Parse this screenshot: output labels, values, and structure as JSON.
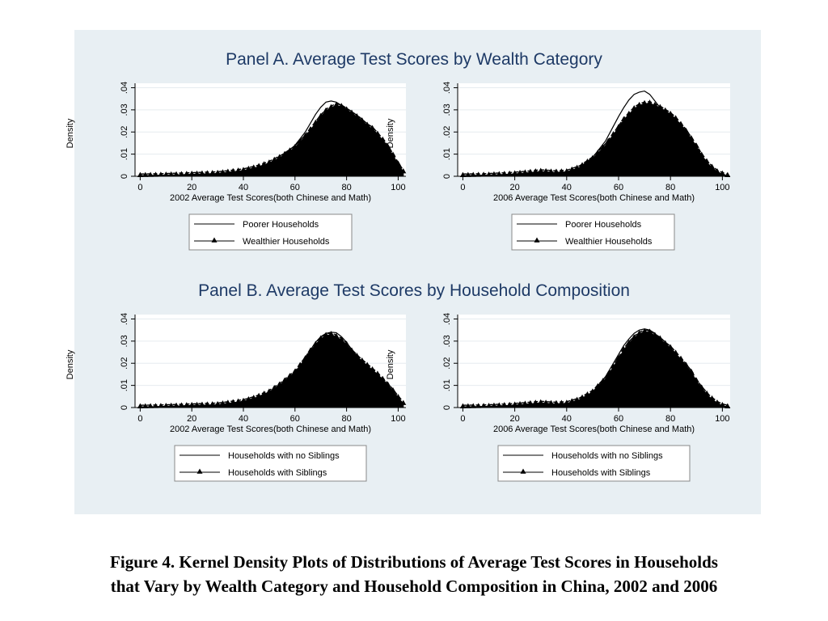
{
  "figure": {
    "caption_line1": "Figure 4. Kernel Density Plots of Distributions of Average Test Scores in Households",
    "caption_line2": "that Vary by Wealth Category and Household Composition in China, 2002 and 2006"
  },
  "colors": {
    "panel_bg": "#e8eff3",
    "plot_bg": "#ffffff",
    "title": "#1e3a66",
    "fill": "#000000"
  },
  "chart_data": [
    {
      "type": "area",
      "panel": "A",
      "panel_title": "Panel A. Average Test Scores by Wealth Category",
      "xlabel": "2002 Average Test Scores(both Chinese and Math)",
      "ylabel": "Density",
      "xlim": [
        -2,
        103
      ],
      "ylim": [
        0,
        0.042
      ],
      "xticks": [
        "0",
        "20",
        "40",
        "60",
        "80",
        "100"
      ],
      "yticks": [
        "0",
        ".01",
        ".02",
        ".03",
        ".04"
      ],
      "grid": true,
      "legend_position": "bottom",
      "series": [
        {
          "name": "Poorer Households",
          "style": "line",
          "x": [
            0,
            10,
            20,
            30,
            40,
            45,
            50,
            55,
            60,
            62,
            64,
            66,
            68,
            70,
            72,
            74,
            76,
            78,
            80,
            82,
            85,
            88,
            90,
            92,
            95,
            98,
            100,
            102
          ],
          "y": [
            0.0003,
            0.0005,
            0.0008,
            0.0012,
            0.0025,
            0.0038,
            0.0055,
            0.009,
            0.014,
            0.017,
            0.02,
            0.024,
            0.028,
            0.0312,
            0.0335,
            0.034,
            0.0335,
            0.032,
            0.03,
            0.0285,
            0.026,
            0.023,
            0.021,
            0.018,
            0.014,
            0.008,
            0.004,
            0.0015
          ]
        },
        {
          "name": "Wealthier Households",
          "style": "area-triangles",
          "x": [
            0,
            10,
            20,
            30,
            40,
            45,
            50,
            55,
            60,
            62,
            64,
            66,
            68,
            70,
            72,
            74,
            76,
            78,
            80,
            82,
            85,
            88,
            90,
            92,
            95,
            98,
            100,
            102
          ],
          "y": [
            0.0003,
            0.0005,
            0.0009,
            0.0013,
            0.0026,
            0.004,
            0.006,
            0.009,
            0.013,
            0.0155,
            0.018,
            0.021,
            0.024,
            0.027,
            0.0295,
            0.031,
            0.032,
            0.0315,
            0.03,
            0.0285,
            0.026,
            0.023,
            0.0215,
            0.019,
            0.015,
            0.0095,
            0.0055,
            0.002
          ]
        }
      ]
    },
    {
      "type": "area",
      "panel": "A",
      "xlabel": "2006 Average Test Scores(both Chinese and Math)",
      "ylabel": "Density",
      "xlim": [
        -2,
        103
      ],
      "ylim": [
        0,
        0.042
      ],
      "xticks": [
        "0",
        "20",
        "40",
        "60",
        "80",
        "100"
      ],
      "yticks": [
        "0",
        ".01",
        ".02",
        ".03",
        ".04"
      ],
      "grid": true,
      "legend_position": "bottom",
      "series": [
        {
          "name": "Poorer Households",
          "style": "line",
          "x": [
            0,
            10,
            20,
            25,
            30,
            35,
            40,
            45,
            50,
            55,
            60,
            62,
            64,
            66,
            68,
            70,
            72,
            74,
            76,
            78,
            80,
            82,
            85,
            88,
            90,
            92,
            95,
            98,
            100,
            102
          ],
          "y": [
            0.0003,
            0.0005,
            0.0009,
            0.0013,
            0.0016,
            0.0013,
            0.0018,
            0.004,
            0.0085,
            0.016,
            0.027,
            0.031,
            0.0345,
            0.037,
            0.038,
            0.0385,
            0.037,
            0.034,
            0.031,
            0.029,
            0.027,
            0.025,
            0.021,
            0.016,
            0.0125,
            0.009,
            0.0045,
            0.0018,
            0.0008,
            0.0003
          ]
        },
        {
          "name": "Wealthier Households",
          "style": "area-triangles",
          "x": [
            0,
            10,
            20,
            25,
            30,
            35,
            40,
            45,
            50,
            55,
            60,
            62,
            64,
            66,
            68,
            70,
            72,
            74,
            76,
            78,
            80,
            82,
            85,
            88,
            90,
            92,
            95,
            98,
            100,
            102
          ],
          "y": [
            0.0003,
            0.0005,
            0.0011,
            0.0016,
            0.0022,
            0.0018,
            0.002,
            0.004,
            0.008,
            0.014,
            0.022,
            0.0255,
            0.028,
            0.0305,
            0.032,
            0.0328,
            0.033,
            0.032,
            0.031,
            0.0295,
            0.028,
            0.026,
            0.022,
            0.017,
            0.0135,
            0.0095,
            0.005,
            0.002,
            0.001,
            0.0003
          ]
        }
      ]
    },
    {
      "type": "area",
      "panel": "B",
      "panel_title": "Panel B. Average Test Scores by Household Composition",
      "xlabel": "2002 Average Test Scores(both Chinese and Math)",
      "ylabel": "Density",
      "xlim": [
        -2,
        103
      ],
      "ylim": [
        0,
        0.042
      ],
      "xticks": [
        "0",
        "20",
        "40",
        "60",
        "80",
        "100"
      ],
      "yticks": [
        "0",
        ".01",
        ".02",
        ".03",
        ".04"
      ],
      "grid": true,
      "legend_position": "bottom",
      "series": [
        {
          "name": "Households with no Siblings",
          "style": "line",
          "x": [
            0,
            10,
            20,
            30,
            40,
            45,
            50,
            55,
            60,
            62,
            64,
            66,
            68,
            70,
            72,
            74,
            76,
            78,
            80,
            82,
            85,
            88,
            90,
            92,
            95,
            98,
            100,
            102
          ],
          "y": [
            0.0002,
            0.0005,
            0.0009,
            0.0012,
            0.0028,
            0.0045,
            0.007,
            0.011,
            0.016,
            0.019,
            0.022,
            0.026,
            0.0295,
            0.032,
            0.0335,
            0.034,
            0.0338,
            0.032,
            0.0295,
            0.026,
            0.022,
            0.0185,
            0.0165,
            0.0145,
            0.011,
            0.007,
            0.004,
            0.0015
          ]
        },
        {
          "name": "Households with Siblings",
          "style": "area-triangles",
          "x": [
            0,
            10,
            20,
            30,
            40,
            45,
            50,
            55,
            60,
            62,
            64,
            66,
            68,
            70,
            72,
            74,
            76,
            78,
            80,
            82,
            85,
            88,
            90,
            92,
            95,
            98,
            100,
            102
          ],
          "y": [
            0.0003,
            0.0005,
            0.0009,
            0.0013,
            0.0028,
            0.0045,
            0.007,
            0.011,
            0.016,
            0.019,
            0.022,
            0.0255,
            0.0285,
            0.031,
            0.0325,
            0.033,
            0.032,
            0.0305,
            0.0285,
            0.0255,
            0.022,
            0.019,
            0.017,
            0.015,
            0.0115,
            0.0075,
            0.0045,
            0.0018
          ]
        }
      ]
    },
    {
      "type": "area",
      "panel": "B",
      "xlabel": "2006 Average Test Scores(both Chinese and Math)",
      "ylabel": "Density",
      "xlim": [
        -2,
        103
      ],
      "ylim": [
        0,
        0.042
      ],
      "xticks": [
        "0",
        "20",
        "40",
        "60",
        "80",
        "100"
      ],
      "yticks": [
        "0",
        ".01",
        ".02",
        ".03",
        ".04"
      ],
      "grid": true,
      "legend_position": "bottom",
      "series": [
        {
          "name": "Households with no Siblings",
          "style": "line",
          "x": [
            0,
            10,
            20,
            25,
            30,
            35,
            40,
            45,
            50,
            55,
            60,
            62,
            64,
            66,
            68,
            70,
            72,
            74,
            76,
            78,
            80,
            82,
            85,
            88,
            90,
            92,
            95,
            98,
            100,
            102
          ],
          "y": [
            0.0003,
            0.0005,
            0.001,
            0.0014,
            0.0019,
            0.0015,
            0.0018,
            0.0035,
            0.007,
            0.014,
            0.024,
            0.028,
            0.031,
            0.0335,
            0.035,
            0.0355,
            0.035,
            0.0335,
            0.031,
            0.0285,
            0.026,
            0.024,
            0.02,
            0.0155,
            0.0115,
            0.0085,
            0.0045,
            0.0018,
            0.0008,
            0.0003
          ]
        },
        {
          "name": "Households with Siblings",
          "style": "area-triangles",
          "x": [
            0,
            10,
            20,
            25,
            30,
            35,
            40,
            45,
            50,
            55,
            60,
            62,
            64,
            66,
            68,
            70,
            72,
            74,
            76,
            78,
            80,
            82,
            85,
            88,
            90,
            92,
            95,
            98,
            100,
            102
          ],
          "y": [
            0.0003,
            0.0005,
            0.0011,
            0.0016,
            0.0021,
            0.0017,
            0.0019,
            0.0036,
            0.007,
            0.013,
            0.022,
            0.026,
            0.029,
            0.0315,
            0.0333,
            0.0342,
            0.034,
            0.0325,
            0.031,
            0.0288,
            0.027,
            0.0245,
            0.0205,
            0.016,
            0.012,
            0.0088,
            0.0048,
            0.002,
            0.0009,
            0.0003
          ]
        }
      ]
    }
  ]
}
